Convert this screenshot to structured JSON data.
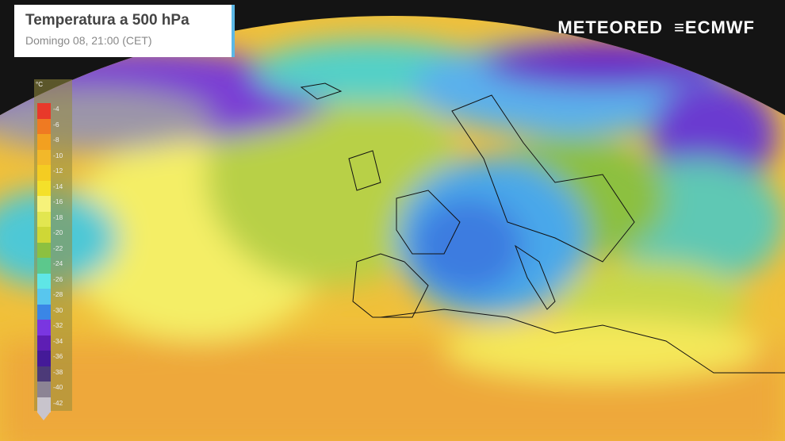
{
  "header": {
    "title": "Temperatura a 500 hPa",
    "subtitle": "Domingo 08, 21:00 (CET)"
  },
  "brand": {
    "meteored": "METEORED",
    "ecmwf": "ECMWF"
  },
  "legend": {
    "unit": "°C",
    "labels": [
      "-4",
      "-6",
      "-8",
      "-10",
      "-12",
      "-14",
      "-16",
      "-18",
      "-20",
      "-22",
      "-24",
      "-26",
      "-28",
      "-30",
      "-32",
      "-34",
      "-36",
      "-38",
      "-40",
      "-42"
    ],
    "colors": [
      "#e8392a",
      "#ef7a22",
      "#f2a020",
      "#f2b82a",
      "#f4cc22",
      "#f4e02a",
      "#f6f27a",
      "#e2e650",
      "#cfd736",
      "#8cc040",
      "#5cc88c",
      "#5fe6e6",
      "#58c6ee",
      "#3a86e6",
      "#7a36e0",
      "#5e1eb4",
      "#441a98",
      "#4c3a78",
      "#8c8494",
      "#c8c4cc"
    ]
  },
  "colors": {
    "warm": "#f2b830",
    "cold_core": "#3c88e4",
    "polar": "#6a28c8"
  }
}
